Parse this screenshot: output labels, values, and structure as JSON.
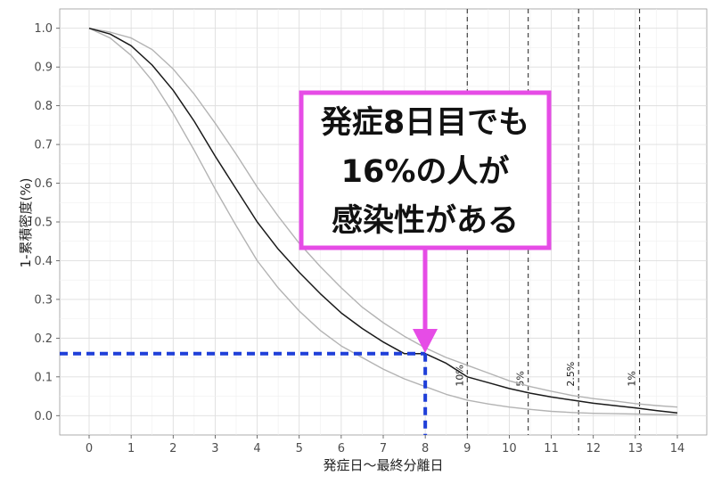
{
  "chart_data": {
    "type": "line",
    "xlabel": "発症日〜最終分離日",
    "ylabel": "1-累積密度(%)",
    "xlim": [
      -0.7,
      14.7
    ],
    "ylim": [
      -0.05,
      1.05
    ],
    "x_ticks": [
      "0",
      "1",
      "2",
      "3",
      "4",
      "5",
      "6",
      "7",
      "8",
      "9",
      "10",
      "11",
      "12",
      "13",
      "14"
    ],
    "y_ticks": [
      "0.0",
      "0.1",
      "0.2",
      "0.3",
      "0.4",
      "0.5",
      "0.6",
      "0.7",
      "0.8",
      "0.9",
      "1.0"
    ],
    "grid": true,
    "series": [
      {
        "role": "estimate",
        "color": "#1a1a1a",
        "x": [
          0,
          0.5,
          1,
          1.5,
          2,
          2.5,
          3,
          3.5,
          4,
          4.5,
          5,
          5.5,
          6,
          6.5,
          7,
          7.5,
          8,
          8.5,
          9,
          9.5,
          10,
          10.5,
          11,
          11.5,
          12,
          12.5,
          13,
          13.5,
          14
        ],
        "y": [
          1.0,
          0.985,
          0.955,
          0.905,
          0.84,
          0.76,
          0.67,
          0.585,
          0.5,
          0.43,
          0.37,
          0.315,
          0.265,
          0.225,
          0.19,
          0.16,
          0.16,
          0.135,
          0.1,
          0.085,
          0.07,
          0.058,
          0.048,
          0.04,
          0.032,
          0.026,
          0.02,
          0.013,
          0.007
        ]
      },
      {
        "role": "upper",
        "color": "#b3b3b3",
        "x": [
          0,
          0.5,
          1,
          1.5,
          2,
          2.5,
          3,
          3.5,
          4,
          4.5,
          5,
          5.5,
          6,
          6.5,
          7,
          7.5,
          8,
          8.5,
          9,
          9.5,
          10,
          10.5,
          11,
          11.5,
          12,
          12.5,
          13,
          13.5,
          14
        ],
        "y": [
          1.0,
          0.99,
          0.975,
          0.945,
          0.895,
          0.83,
          0.755,
          0.675,
          0.59,
          0.515,
          0.445,
          0.385,
          0.33,
          0.28,
          0.24,
          0.205,
          0.175,
          0.15,
          0.13,
          0.11,
          0.09,
          0.075,
          0.063,
          0.052,
          0.044,
          0.038,
          0.031,
          0.026,
          0.022
        ]
      },
      {
        "role": "lower",
        "color": "#b3b3b3",
        "x": [
          0,
          0.5,
          1,
          1.5,
          2,
          2.5,
          3,
          3.5,
          4,
          4.5,
          5,
          5.5,
          6,
          6.5,
          7,
          7.5,
          8,
          8.5,
          9,
          9.5,
          10,
          10.5,
          11,
          11.5,
          12,
          12.5,
          13,
          13.5,
          14
        ],
        "y": [
          1.0,
          0.975,
          0.93,
          0.865,
          0.78,
          0.685,
          0.585,
          0.49,
          0.4,
          0.33,
          0.27,
          0.22,
          0.18,
          0.15,
          0.12,
          0.095,
          0.075,
          0.055,
          0.04,
          0.03,
          0.022,
          0.016,
          0.011,
          0.008,
          0.006,
          0.005,
          0.004,
          0.003,
          0.002
        ]
      }
    ],
    "vlines": [
      {
        "x": 9.0,
        "label": "10%"
      },
      {
        "x": 10.45,
        "label": "5%"
      },
      {
        "x": 11.65,
        "label": "2.5%"
      },
      {
        "x": 13.1,
        "label": "1%"
      }
    ],
    "highlight": {
      "x": 8,
      "y": 0.16,
      "color": "#1f3fd8"
    },
    "callout": {
      "lines": [
        "発症8日目でも",
        "16%の人が",
        "感染性がある"
      ],
      "border_color": "#e64ce6"
    }
  }
}
